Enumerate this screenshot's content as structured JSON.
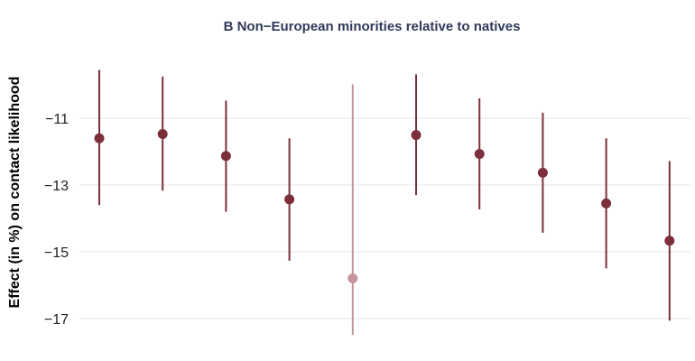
{
  "chart_data": {
    "type": "scatter",
    "title": "B Non−European minorities relative to natives",
    "ylabel": "Effect (in %) on contact likelihood",
    "xlabel": "",
    "ylim": [
      -17.6,
      -9.4
    ],
    "yticks": [
      -11,
      -13,
      -15,
      -17
    ],
    "ytick_labels": [
      "−11",
      "−13",
      "−15",
      "−17"
    ],
    "grid": true,
    "colors": {
      "primary": "#7b2f3a",
      "faded": "#c4959b"
    },
    "points": [
      {
        "x": 1,
        "estimate": -11.6,
        "lower": -13.6,
        "upper": -9.55,
        "faded": false
      },
      {
        "x": 2,
        "estimate": -11.47,
        "lower": -13.17,
        "upper": -9.75,
        "faded": false
      },
      {
        "x": 3,
        "estimate": -12.13,
        "lower": -13.8,
        "upper": -10.47,
        "faded": false
      },
      {
        "x": 4,
        "estimate": -13.43,
        "lower": -15.27,
        "upper": -11.6,
        "faded": false
      },
      {
        "x": 5,
        "estimate": -15.8,
        "lower": -17.5,
        "upper": -9.98,
        "faded": true
      },
      {
        "x": 6,
        "estimate": -11.5,
        "lower": -13.3,
        "upper": -9.68,
        "faded": false
      },
      {
        "x": 7,
        "estimate": -12.07,
        "lower": -13.73,
        "upper": -10.4,
        "faded": false
      },
      {
        "x": 8,
        "estimate": -12.63,
        "lower": -14.43,
        "upper": -10.83,
        "faded": false
      },
      {
        "x": 9,
        "estimate": -13.55,
        "lower": -15.5,
        "upper": -11.6,
        "faded": false
      },
      {
        "x": 10,
        "estimate": -14.67,
        "lower": -17.07,
        "upper": -12.28,
        "faded": false
      }
    ]
  }
}
